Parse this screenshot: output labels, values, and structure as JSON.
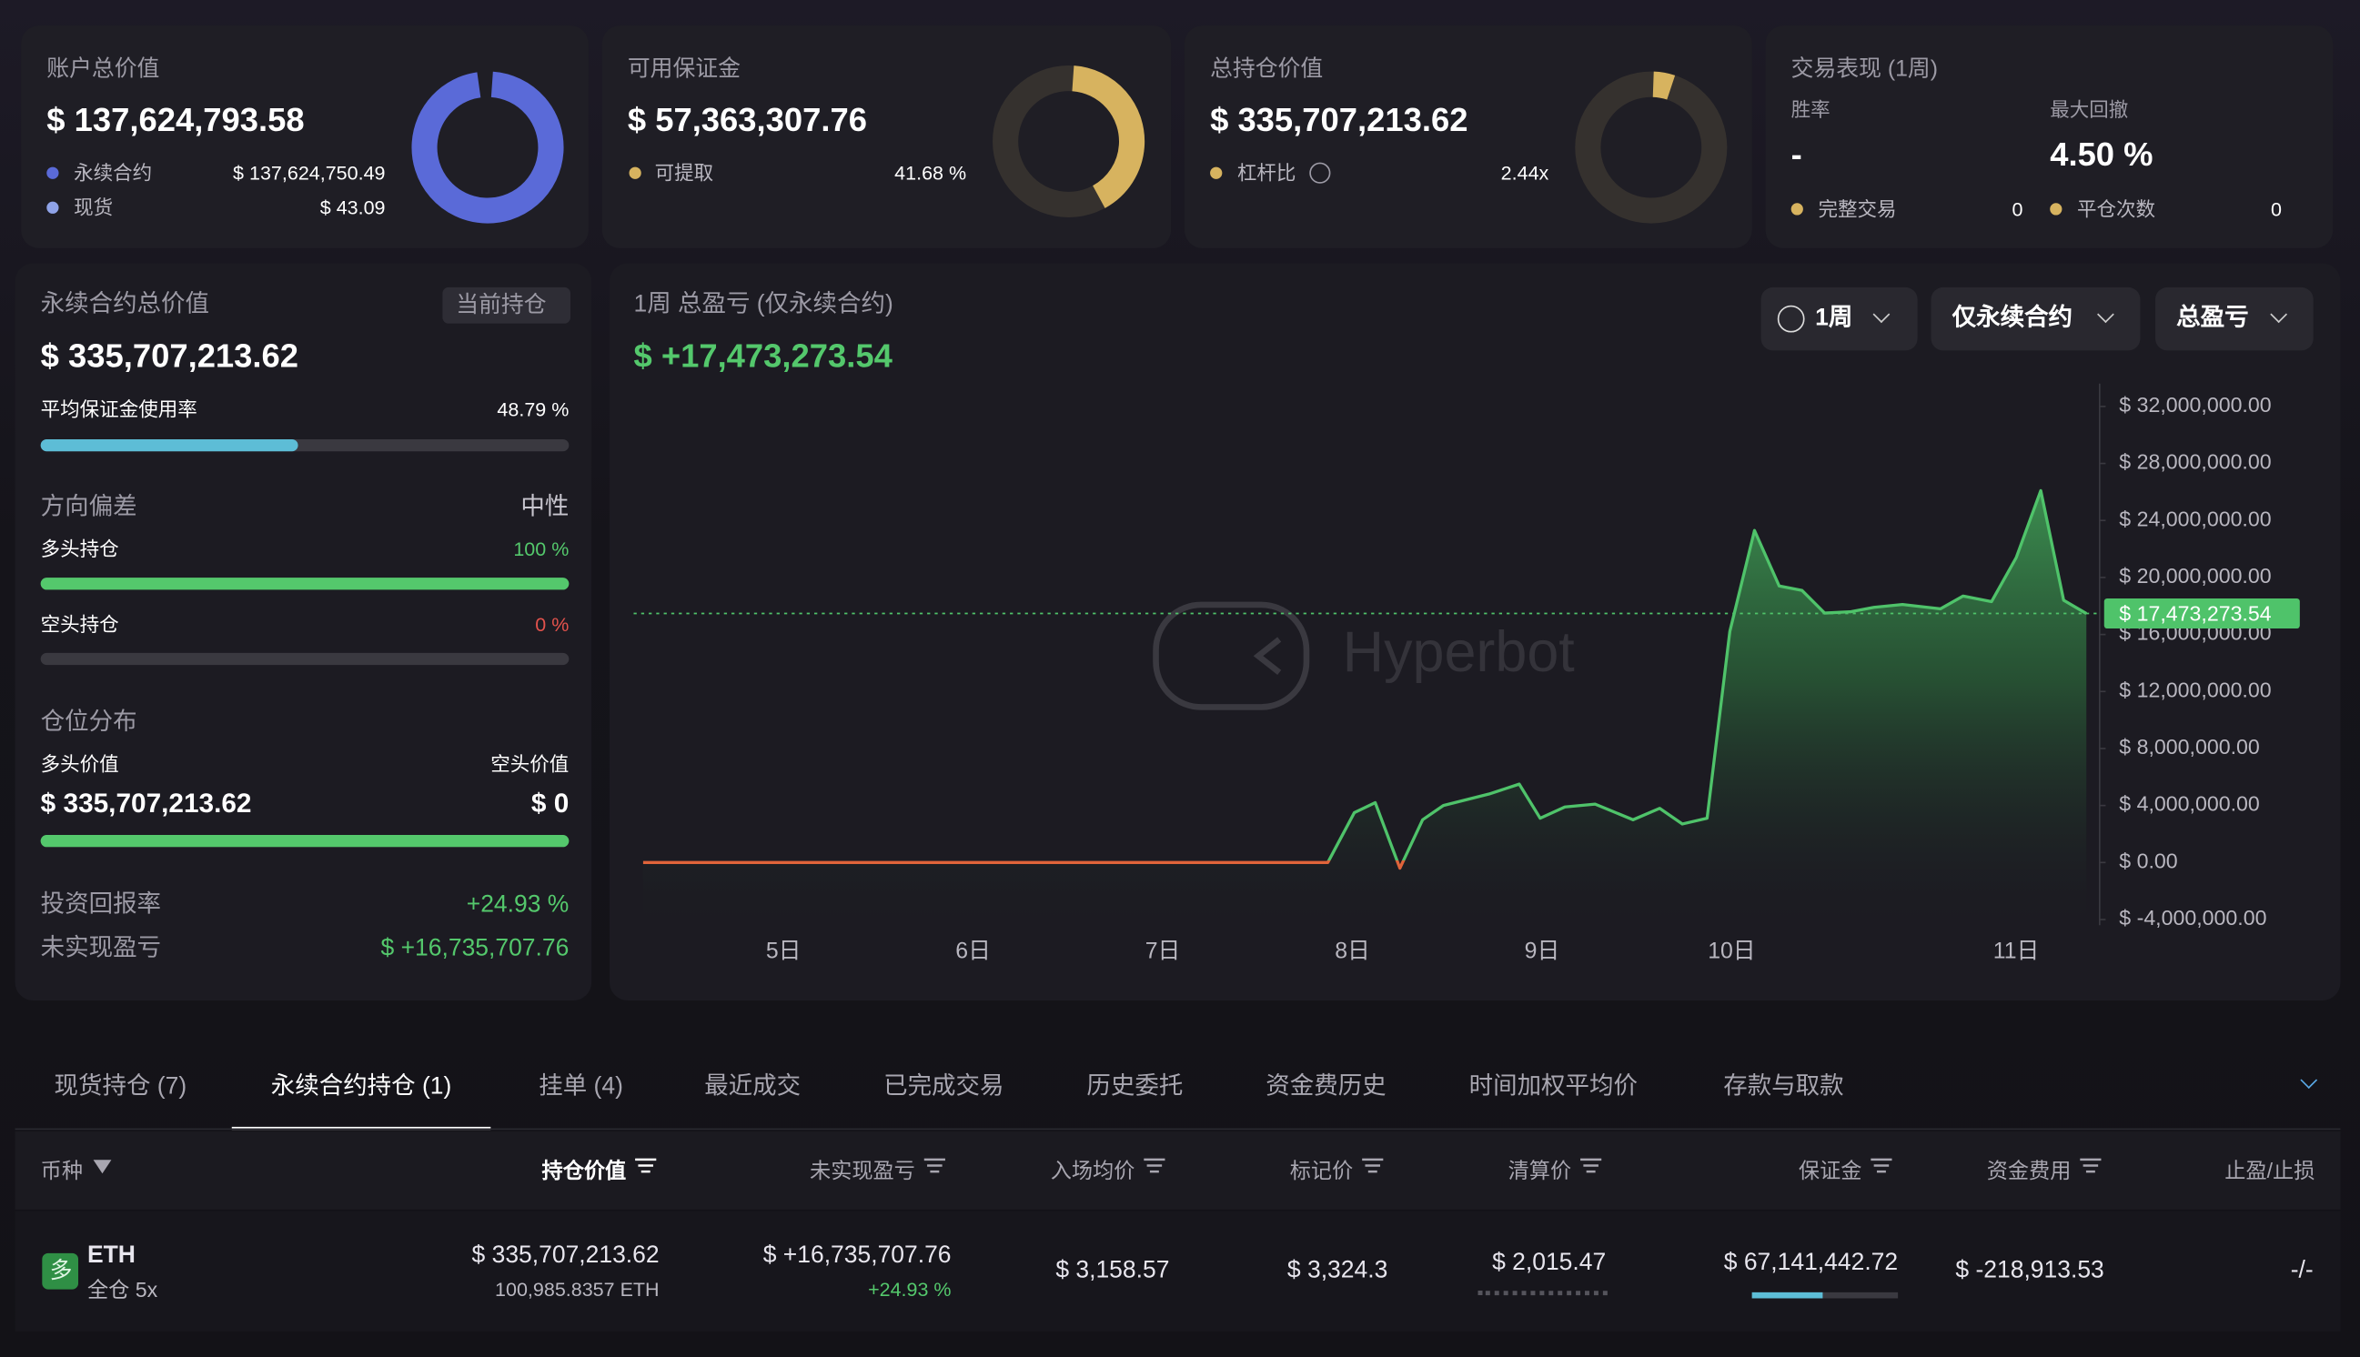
{
  "summary_cards": [
    {
      "title": "账户总价值",
      "value": "$ 137,624,793.58",
      "rows": [
        {
          "label": "永续合约",
          "value": "$ 137,624,750.49"
        },
        {
          "label": "现货",
          "value": "$ 43.09"
        }
      ]
    },
    {
      "title": "可用保证金",
      "value": "$ 57,363,307.76",
      "rows": [
        {
          "label": "可提取",
          "value": "41.68 %"
        }
      ]
    },
    {
      "title": "总持仓价值",
      "value": "$ 335,707,213.62",
      "rows": [
        {
          "label": "杠杆比",
          "value": "2.44x"
        }
      ]
    }
  ],
  "performance": {
    "title": "交易表现 (1周)",
    "win_rate_label": "胜率",
    "win_rate": "-",
    "drawdown_label": "最大回撤",
    "drawdown": "4.50 %",
    "trades_label": "完整交易",
    "trades": "0",
    "closes_label": "平仓次数",
    "closes": "0"
  },
  "perp_panel": {
    "title": "永续合约总价值",
    "badge": "当前持仓",
    "value": "$ 335,707,213.62",
    "margin_usage_label": "平均保证金使用率",
    "margin_usage": "48.79 %",
    "bias_label": "方向偏差",
    "bias": "中性",
    "long_label": "多头持仓",
    "long": "100 %",
    "short_label": "空头持仓",
    "short": "0 %",
    "distribution_label": "仓位分布",
    "long_value_label": "多头价值",
    "short_value_label": "空头价值",
    "long_value": "$ 335,707,213.62",
    "short_value": "$ 0",
    "roi_label": "投资回报率",
    "roi": "+24.93 %",
    "upnl_label": "未实现盈亏",
    "upnl": "$ +16,735,707.76"
  },
  "pnl_panel": {
    "title": "1周 总盈亏 (仅永续合约)",
    "value": "$ +17,473,273.54",
    "filters": [
      "1周",
      "仅永续合约",
      "总盈亏"
    ],
    "watermark": "Hyperbot",
    "last_value_label": "$ 17,473,273.54"
  },
  "chart_data": {
    "type": "area",
    "x": [
      4.26,
      7.87,
      8.01,
      8.12,
      8.25,
      8.37,
      8.48,
      8.72,
      8.88,
      8.99,
      9.12,
      9.28,
      9.48,
      9.62,
      9.74,
      9.87,
      9.99,
      10.12,
      10.25,
      10.37,
      10.49,
      10.63,
      10.75,
      10.9,
      11.1,
      11.22,
      11.37,
      11.5,
      11.63,
      11.75,
      11.87
    ],
    "values": [
      0,
      0,
      3500000,
      4200000,
      -400000,
      3000000,
      4000000,
      4800000,
      5500000,
      3100000,
      3900000,
      4100000,
      3000000,
      3800000,
      2700000,
      3100000,
      16200000,
      23300000,
      19400000,
      19100000,
      17500000,
      17600000,
      17900000,
      18100000,
      17800000,
      18700000,
      18300000,
      21400000,
      26100000,
      18400000,
      17473273.54
    ],
    "color": "#4fc36a",
    "negative_color": "#e0643a",
    "xlim": [
      4.21,
      11.94
    ],
    "ylim": [
      -4400000,
      33600000
    ],
    "xticks": [
      {
        "value": 5,
        "label": "5日"
      },
      {
        "value": 6,
        "label": "6日"
      },
      {
        "value": 7,
        "label": "7日"
      },
      {
        "value": 8,
        "label": "8日"
      },
      {
        "value": 9,
        "label": "9日"
      },
      {
        "value": 10,
        "label": "10日"
      },
      {
        "value": 11.5,
        "label": "11日"
      }
    ],
    "yticks": [
      {
        "value": 32000000,
        "label": "$ 32,000,000.00"
      },
      {
        "value": 28000000,
        "label": "$ 28,000,000.00"
      },
      {
        "value": 24000000,
        "label": "$ 24,000,000.00"
      },
      {
        "value": 20000000,
        "label": "$ 20,000,000.00"
      },
      {
        "value": 16000000,
        "label": "$ 16,000,000.00"
      },
      {
        "value": 12000000,
        "label": "$ 12,000,000.00"
      },
      {
        "value": 8000000,
        "label": "$ 8,000,000.00"
      },
      {
        "value": 4000000,
        "label": "$ 4,000,000.00"
      },
      {
        "value": 0,
        "label": "$ 0.00"
      },
      {
        "value": -4000000,
        "label": "$ -4,000,000.00"
      }
    ],
    "grid": false
  },
  "tabs": {
    "items": [
      "现货持仓 (7)",
      "永续合约持仓 (1)",
      "挂单 (4)",
      "最近成交",
      "已完成交易",
      "历史委托",
      "资金费历史",
      "时间加权平均价",
      "存款与取款"
    ],
    "active": 1
  },
  "table": {
    "headers": [
      "币种",
      "持仓价值",
      "未实现盈亏",
      "入场均价",
      "标记价",
      "清算价",
      "保证金",
      "资金费用",
      "止盈/止损"
    ],
    "rows": [
      {
        "side": "多",
        "coin": "ETH",
        "mode": "全仓 5x",
        "value": "$ 335,707,213.62",
        "size": "100,985.8357 ETH",
        "upnl": "$ +16,735,707.76",
        "upnl_pct": "+24.93 %",
        "entry": "$ 3,158.57",
        "mark": "$ 3,324.3",
        "liq": "$ 2,015.47",
        "margin": "$ 67,141,442.72",
        "funding": "$ -218,913.53",
        "tpsl": "-/-"
      }
    ]
  }
}
